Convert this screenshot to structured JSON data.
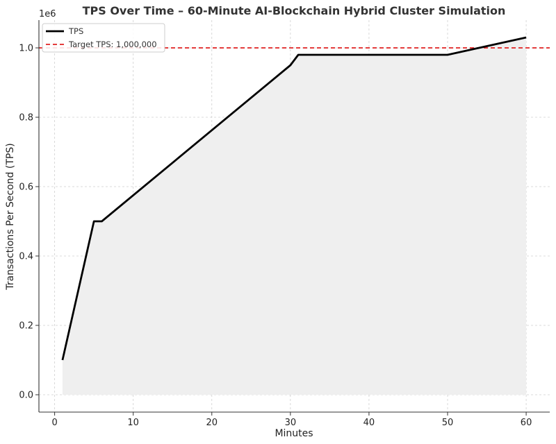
{
  "chart_data": {
    "type": "line",
    "title": "TPS Over Time – 60-Minute AI-Blockchain Hybrid Cluster Simulation",
    "xlabel": "Minutes",
    "ylabel": "Transactions Per Second (TPS)",
    "y_offset_label": "1e6",
    "xlim": [
      -2,
      63
    ],
    "ylim": [
      -0.05,
      1.08
    ],
    "x_ticks": [
      0,
      10,
      20,
      30,
      40,
      50,
      60
    ],
    "x_tick_labels": [
      "0",
      "10",
      "20",
      "30",
      "40",
      "50",
      "60"
    ],
    "y_ticks": [
      0.0,
      0.2,
      0.4,
      0.6,
      0.8,
      1.0
    ],
    "y_tick_labels": [
      "0.0",
      "0.2",
      "0.4",
      "0.6",
      "0.8",
      "1.0"
    ],
    "grid": true,
    "legend_position": "top-left",
    "series": [
      {
        "name": "TPS",
        "color": "#000000",
        "style": "solid",
        "fill_below": true,
        "fill_color": "#efefef",
        "x": [
          1,
          5,
          6,
          30,
          31,
          50,
          60
        ],
        "y": [
          0.1,
          0.5,
          0.5,
          0.95,
          0.98,
          0.98,
          1.03
        ]
      }
    ],
    "reference_lines": [
      {
        "name": "Target TPS: 1,000,000",
        "orientation": "horizontal",
        "value": 1.0,
        "color": "#e02020",
        "style": "dashed"
      }
    ]
  }
}
